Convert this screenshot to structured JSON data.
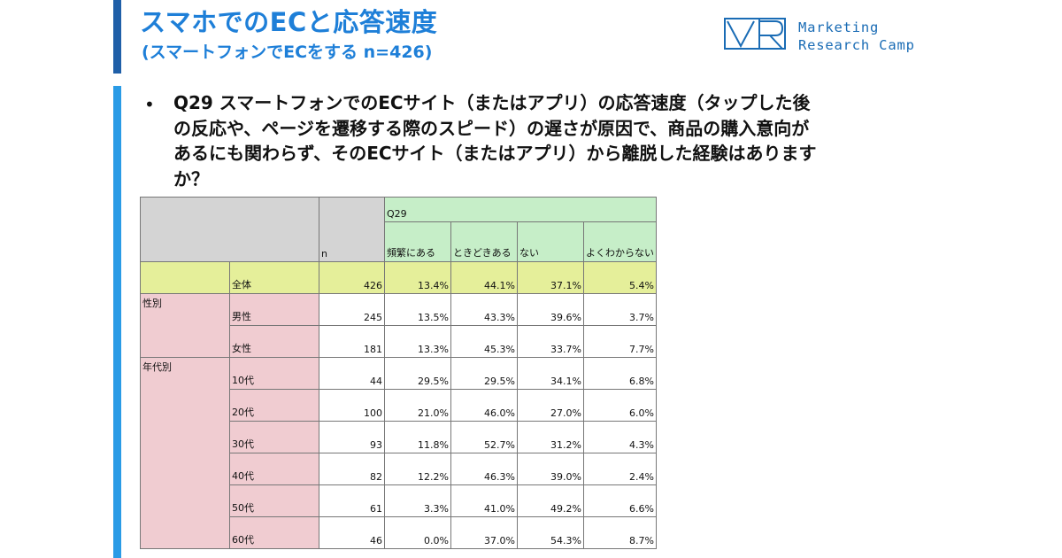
{
  "header": {
    "title": "スマホでのECと応答速度",
    "subtitle": "(スマートフォンでECをする n=426)"
  },
  "logo": {
    "line1": "Marketing",
    "line2": "Research Camp",
    "brand_color": "#1a6cb5"
  },
  "question": {
    "bullet": "•",
    "lines": [
      "Q29 スマートフォンでのECサイト（またはアプリ）の応答速度（タップした後",
      "の反応や、ページを遷移する際のスピード）の遅さが原因で、商品の購入意向が",
      "あるにも関わらず、そのECサイト（またはアプリ）から離脱した経験はあります",
      "か？"
    ]
  },
  "table": {
    "question_code": "Q29",
    "n_header": "n",
    "columns": [
      "頻繁にある",
      "ときどきある",
      "ない",
      "よくわからない"
    ],
    "total": {
      "label": "全体",
      "n": "426",
      "values": [
        "13.4%",
        "44.1%",
        "37.1%",
        "5.4%"
      ]
    },
    "groups": [
      {
        "name": "性別",
        "rows": [
          {
            "label": "男性",
            "n": "245",
            "values": [
              "13.5%",
              "43.3%",
              "39.6%",
              "3.7%"
            ]
          },
          {
            "label": "女性",
            "n": "181",
            "values": [
              "13.3%",
              "45.3%",
              "33.7%",
              "7.7%"
            ]
          }
        ]
      },
      {
        "name": "年代別",
        "rows": [
          {
            "label": "10代",
            "n": "44",
            "values": [
              "29.5%",
              "29.5%",
              "34.1%",
              "6.8%"
            ]
          },
          {
            "label": "20代",
            "n": "100",
            "values": [
              "21.0%",
              "46.0%",
              "27.0%",
              "6.0%"
            ]
          },
          {
            "label": "30代",
            "n": "93",
            "values": [
              "11.8%",
              "52.7%",
              "31.2%",
              "4.3%"
            ]
          },
          {
            "label": "40代",
            "n": "82",
            "values": [
              "12.2%",
              "46.3%",
              "39.0%",
              "2.4%"
            ]
          },
          {
            "label": "50代",
            "n": "61",
            "values": [
              "3.3%",
              "41.0%",
              "49.2%",
              "6.6%"
            ]
          },
          {
            "label": "60代",
            "n": "46",
            "values": [
              "0.0%",
              "37.0%",
              "54.3%",
              "8.7%"
            ]
          }
        ]
      }
    ]
  },
  "colors": {
    "accent": "#1e7fd8",
    "header_green": "#c6eec8",
    "total_yellow": "#e5ef9a",
    "group_pink": "#f0ccd1",
    "header_gray": "#d4d4d4"
  }
}
